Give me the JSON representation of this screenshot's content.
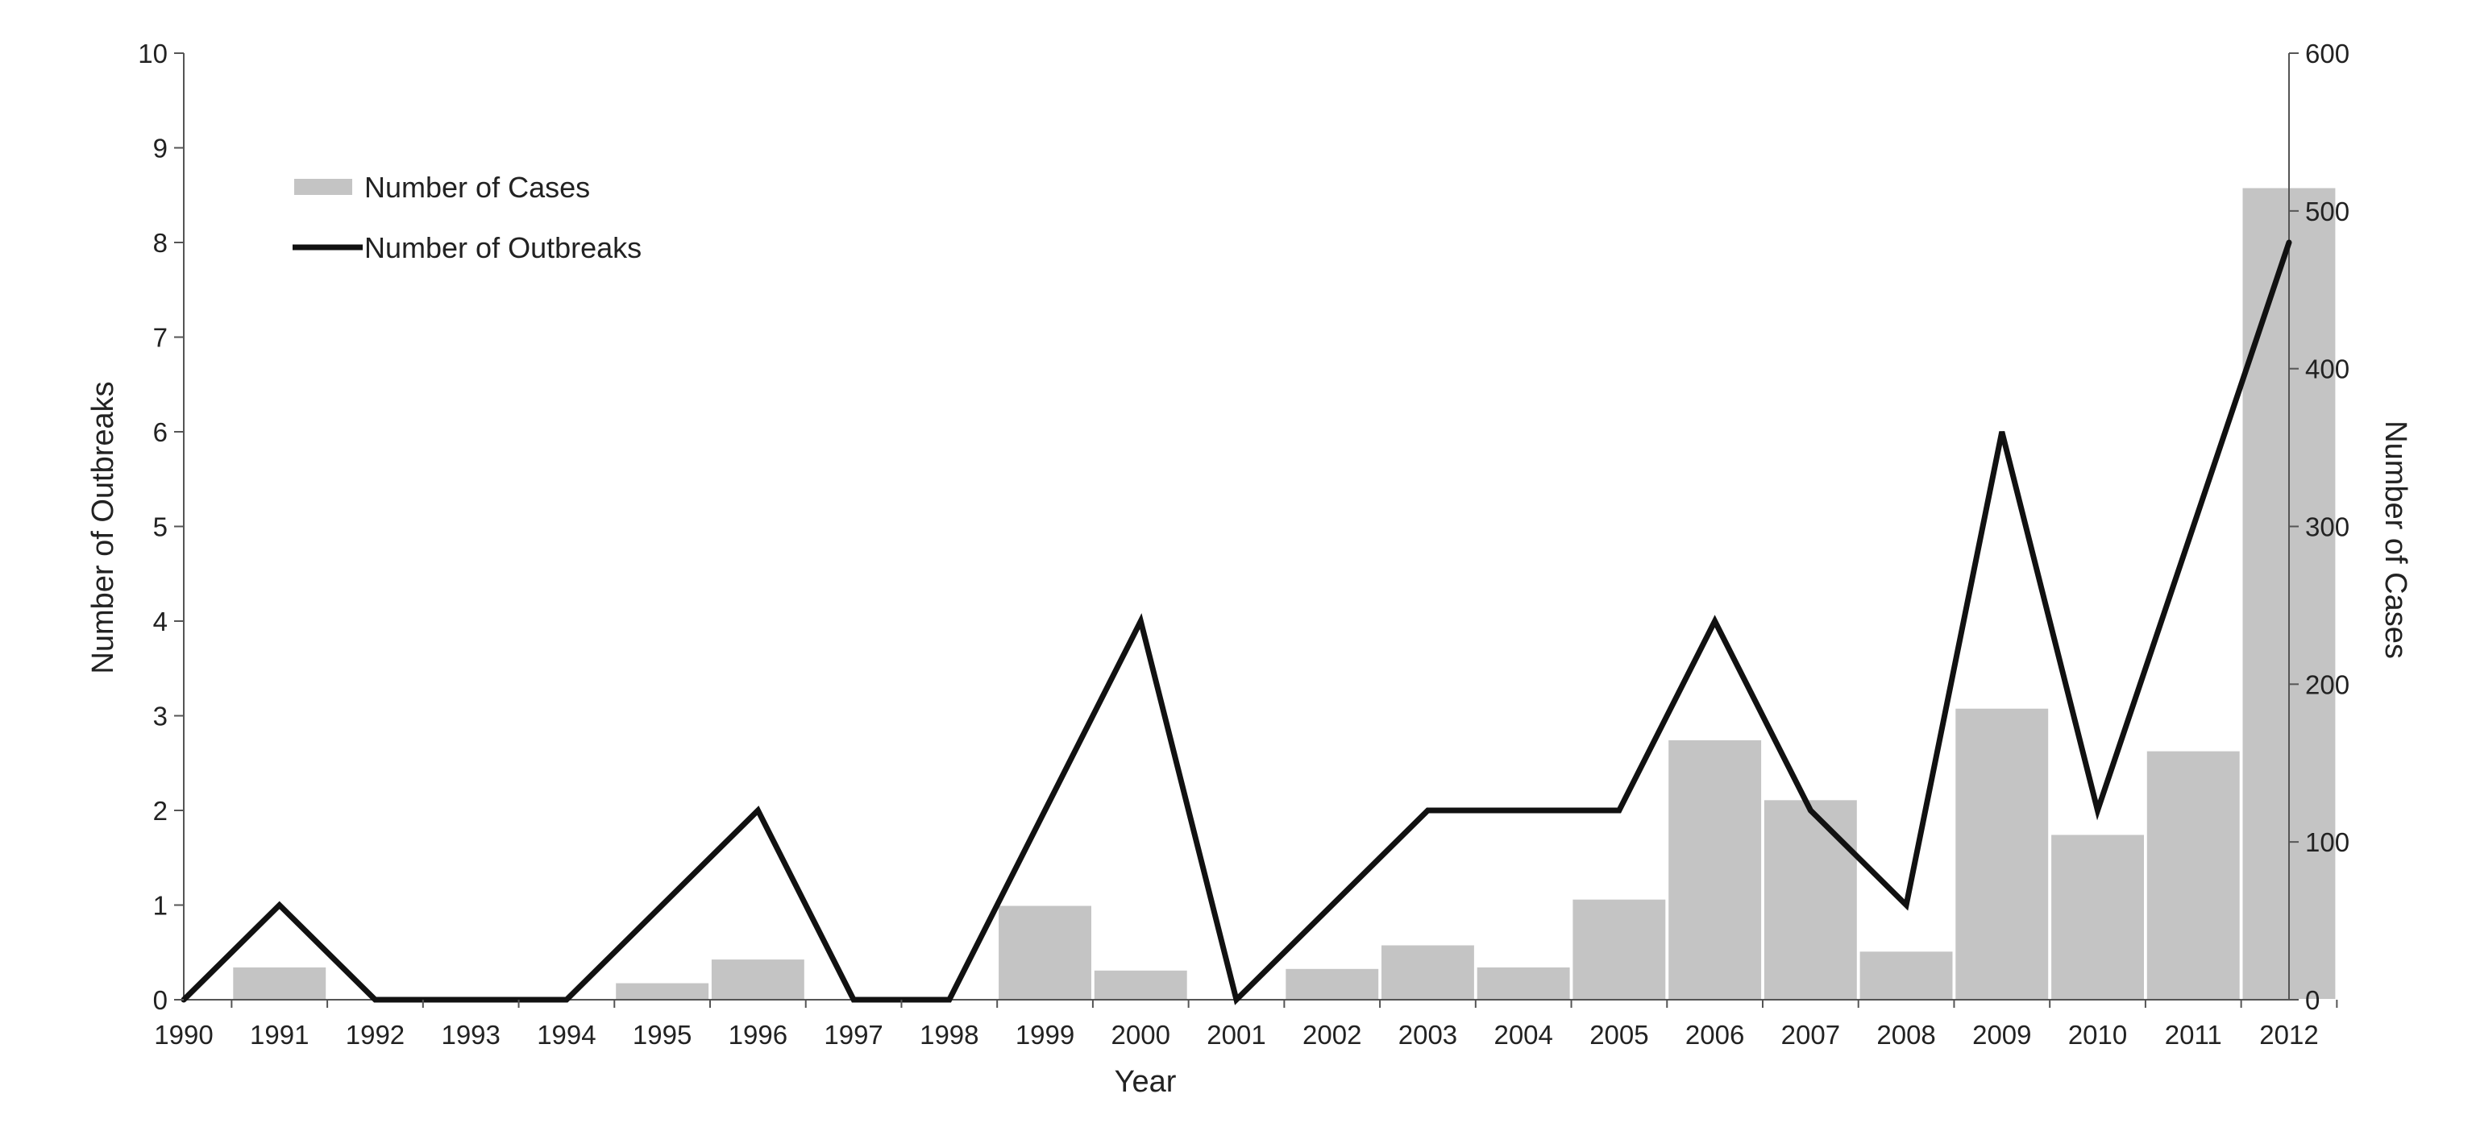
{
  "chart_data": {
    "type": "bar",
    "categories": [
      "1990",
      "1991",
      "1992",
      "1993",
      "1994",
      "1995",
      "1996",
      "1997",
      "1998",
      "1999",
      "2000",
      "2001",
      "2002",
      "2003",
      "2004",
      "2005",
      "2006",
      "2007",
      "2008",
      "2009",
      "2010",
      "2011",
      "2012"
    ],
    "series": [
      {
        "name": "Number of Cases",
        "type": "bar",
        "axis": "right",
        "color": "#c4c4c4",
        "values": [
          0,
          21,
          0,
          0,
          0,
          11,
          26,
          0,
          0,
          60,
          19,
          0,
          20,
          35,
          21,
          64,
          165,
          127,
          31,
          185,
          105,
          158,
          515
        ]
      },
      {
        "name": "Number of Outbreaks",
        "type": "line",
        "axis": "left",
        "color": "#111111",
        "values": [
          0,
          1,
          0,
          0,
          0,
          1,
          2,
          0,
          0,
          2,
          4,
          0,
          1,
          2,
          2,
          2,
          4,
          2,
          1,
          6,
          2,
          5,
          8
        ]
      }
    ],
    "xlabel": "Year",
    "ylabel": "Number of Outbreaks",
    "y2label": "Number of Cases",
    "ylim": [
      0,
      10
    ],
    "y2lim": [
      0,
      600
    ],
    "yticks": [
      0,
      1,
      2,
      3,
      4,
      5,
      6,
      7,
      8,
      9,
      10
    ],
    "y2ticks": [
      0,
      100,
      200,
      300,
      400,
      500,
      600
    ],
    "grid": false,
    "legend_position": "top-left"
  }
}
